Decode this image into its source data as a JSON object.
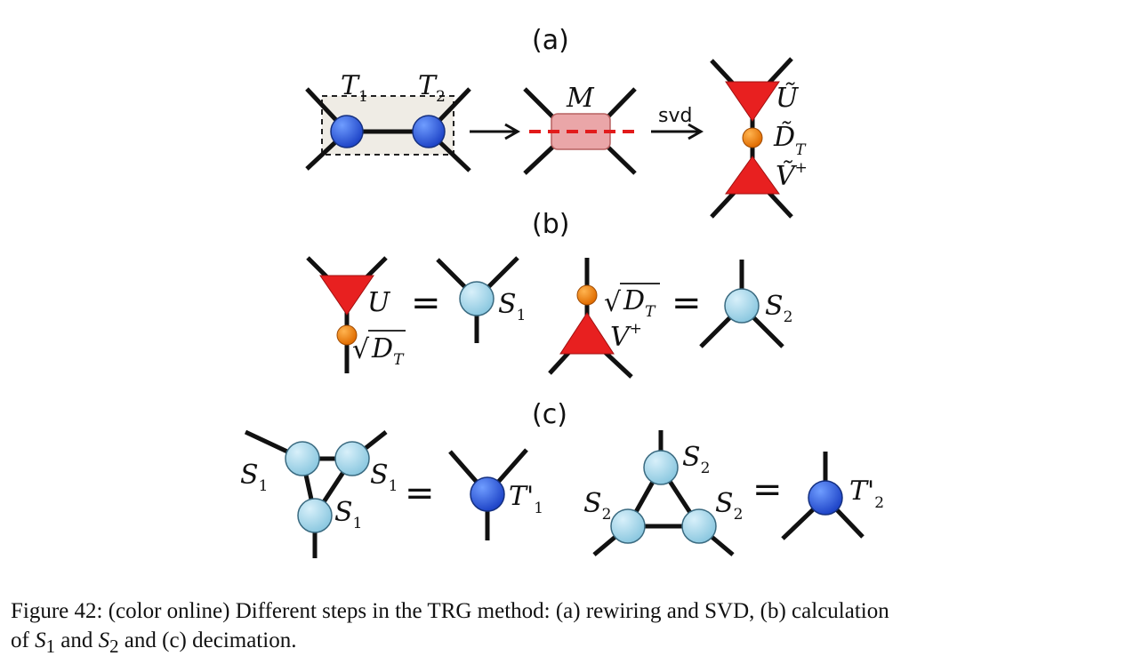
{
  "panels": {
    "a": "(a)",
    "b": "(b)",
    "c": "(c)"
  },
  "labels": {
    "T": "T",
    "T1_sub": "1",
    "T2_sub": "2",
    "M": "M",
    "svd": "svd",
    "U_tilde": "Ũ",
    "D_tilde": "D̃",
    "D_sub": "T",
    "V_tilde": "Ṽ",
    "plus": "+",
    "U": "U",
    "D": "D",
    "V": "V",
    "S": "S",
    "S1_sub": "1",
    "S2_sub": "2",
    "T_prime": "T'",
    "Tp1_sub": "1",
    "Tp2_sub": "2",
    "sqrt": "√",
    "equals": "="
  },
  "colors": {
    "blue_node": "#2f5fe0",
    "light_blue_node": "#a9d8ea",
    "orange_node": "#f08a1a",
    "red_triangle": "#e82020",
    "pink_box": "#eaa6a8",
    "dashed_red": "#e21b1b",
    "box_fill": "#efece5"
  },
  "caption": {
    "line1": "Figure 42: (color online) Different steps in the TRG method: (a) rewiring and SVD, (b) calculation",
    "line2_pre": "of ",
    "s1": "S",
    "s1_sub": "1",
    "and": " and ",
    "s2": "S",
    "s2_sub": "2",
    "line2_post": " and (c) decimation."
  }
}
